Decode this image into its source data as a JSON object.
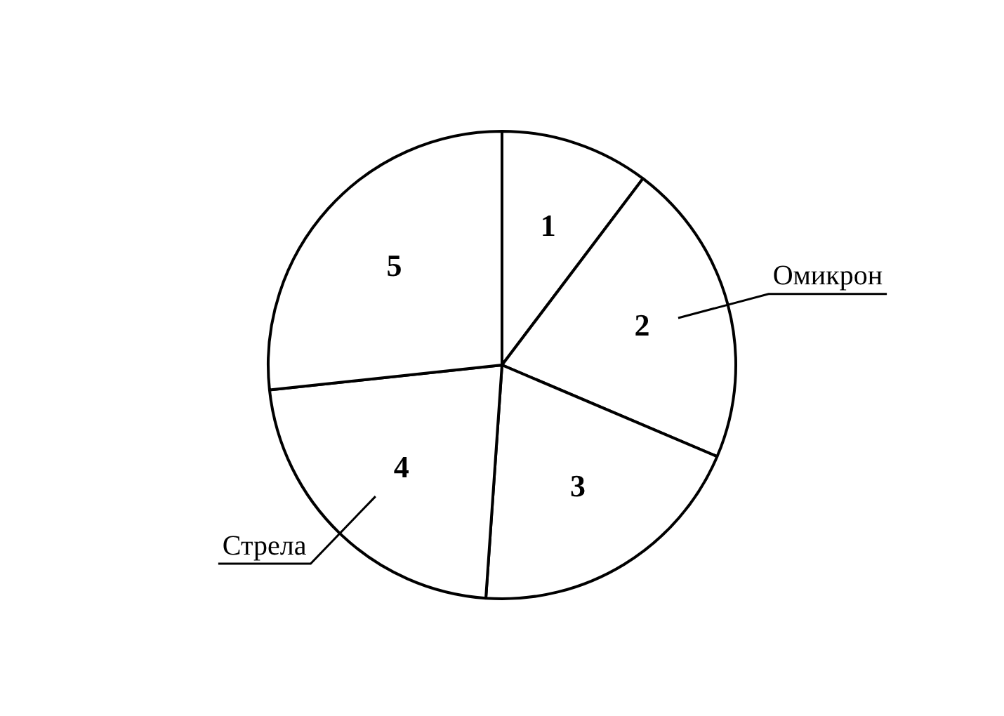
{
  "chart_data": {
    "type": "pie",
    "categories": [
      "1",
      "2",
      "3",
      "4",
      "5"
    ],
    "values": [
      10.3,
      21.1,
      19.7,
      22.2,
      26.7
    ],
    "colors": [
      "#ffffff",
      "#ffffff",
      "#ffffff",
      "#ffffff",
      "#ffffff"
    ],
    "legend": false,
    "annotations": [
      {
        "text": "Омикрон",
        "x": "2"
      },
      {
        "text": "Стрела",
        "x": "4"
      }
    ]
  }
}
